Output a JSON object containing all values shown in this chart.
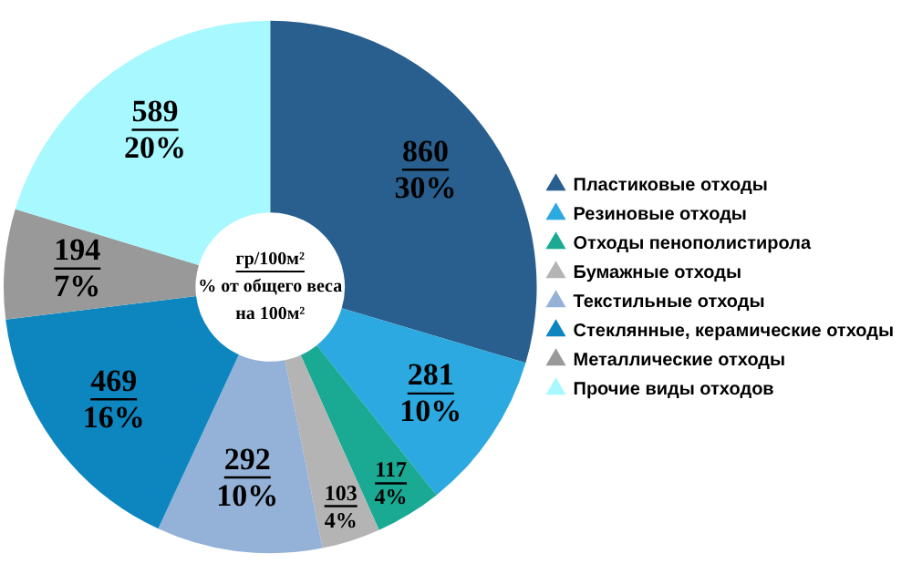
{
  "chart_data": {
    "type": "donut",
    "categories": [
      "Пластиковые отходы",
      "Резиновые отходы",
      "Отходы пенополистирола",
      "Бумажные отходы",
      "Текстильные отходы",
      "Стеклянные, керамические отходы",
      "Металлические отходы",
      "Прочие виды отходов"
    ],
    "values": [
      860,
      281,
      117,
      103,
      292,
      469,
      194,
      589
    ],
    "colors": [
      "#285f8e",
      "#2ba9e0",
      "#1aa993",
      "#b4b4b4",
      "#94b2d8",
      "#0d86c0",
      "#999999",
      "#a8f8ff"
    ],
    "value_labels": [
      "860\n30%",
      "281\n10%",
      "117\n4%",
      "103\n4%",
      "292\n10%",
      "469\n16%",
      "194\n7%",
      "589\n20%"
    ],
    "annotations": [
      "гр/100м²",
      "% от общего веса\nна 100м²"
    ],
    "legend": "right"
  }
}
